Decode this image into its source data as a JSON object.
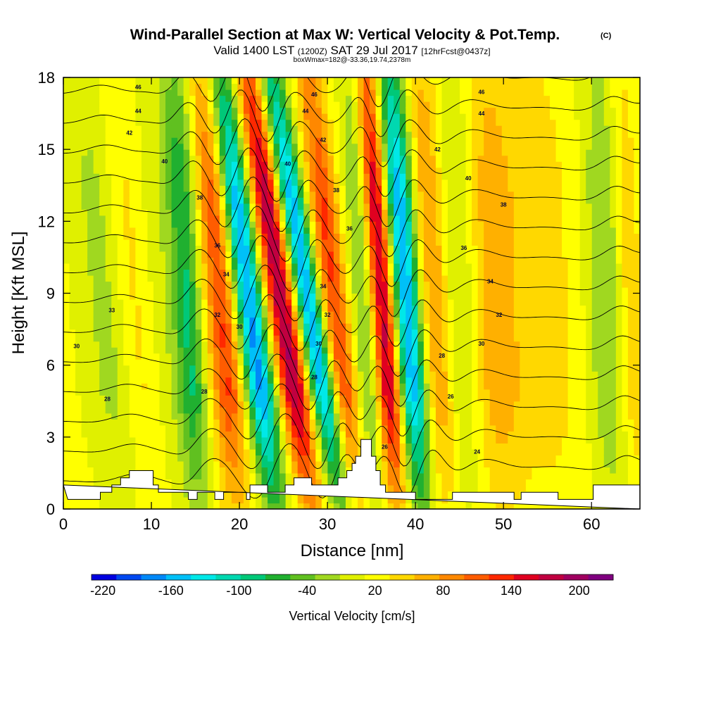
{
  "chart_data": {
    "type": "heatmap",
    "title": "Wind-Parallel Section at Max W: Vertical Velocity & Pot.Temp.",
    "title_mark": "(C)",
    "subtitle_parts": [
      "Valid 1400 LST",
      "(1200Z)",
      "SAT 29 Jul 2017",
      "[12hrFcst@0437z]"
    ],
    "subtitle2": "boxWmax=182@-33.36,19.74,2378m",
    "xlabel": "Distance [nm]",
    "ylabel": "Height [Kft MSL]",
    "xlim": [
      0,
      65.5
    ],
    "ylim": [
      0,
      18
    ],
    "xticks": [
      0,
      10,
      20,
      30,
      40,
      50,
      60
    ],
    "yticks": [
      0,
      3,
      6,
      9,
      12,
      15,
      18
    ],
    "colorbar": {
      "label": "Vertical Velocity [cm/s]",
      "ticks": [
        -220,
        -160,
        -100,
        -40,
        20,
        80,
        140,
        200
      ],
      "min": -230,
      "max": 230,
      "colors": [
        "#0000e0",
        "#0048f0",
        "#0088f8",
        "#00c0f8",
        "#00e8e8",
        "#00d8b0",
        "#00c878",
        "#20b030",
        "#60c020",
        "#a0d820",
        "#e0f000",
        "#ffff00",
        "#ffd800",
        "#ffb000",
        "#ff8800",
        "#ff5c00",
        "#ff2800",
        "#e00020",
        "#c00040",
        "#a00060",
        "#800080"
      ]
    },
    "wave_bands": [
      {
        "x": 5.5,
        "w": -35,
        "tilt": 0.25,
        "width": 2.8
      },
      {
        "x": 8.5,
        "w": 30,
        "tilt": 0.25,
        "width": 2.2
      },
      {
        "x": 12.0,
        "w": -20,
        "tilt": 0.2,
        "width": 2.2
      },
      {
        "x": 14.5,
        "w": -90,
        "tilt": 0.15,
        "width": 1.6
      },
      {
        "x": 18.5,
        "w": 110,
        "tilt": 0.2,
        "width": 1.9
      },
      {
        "x": 22.0,
        "w": -190,
        "tilt": 0.35,
        "width": 1.7
      },
      {
        "x": 25.8,
        "w": 175,
        "tilt": 0.4,
        "width": 1.7
      },
      {
        "x": 29.0,
        "w": -180,
        "tilt": 0.45,
        "width": 1.5
      },
      {
        "x": 31.5,
        "w": 110,
        "tilt": 0.3,
        "width": 1.6
      },
      {
        "x": 34.5,
        "w": -60,
        "tilt": 0.15,
        "width": 1.4
      },
      {
        "x": 36.8,
        "w": 165,
        "tilt": 0.2,
        "width": 1.4
      },
      {
        "x": 39.5,
        "w": -180,
        "tilt": 0.2,
        "width": 1.6
      },
      {
        "x": 42.5,
        "w": 70,
        "tilt": 0.15,
        "width": 1.8
      },
      {
        "x": 45.5,
        "w": -40,
        "tilt": 0.1,
        "width": 2.5
      },
      {
        "x": 49.0,
        "w": 60,
        "tilt": 0.1,
        "width": 3.0
      },
      {
        "x": 55.0,
        "w": 30,
        "tilt": 0.1,
        "width": 3.5
      },
      {
        "x": 62.0,
        "w": -50,
        "tilt": 0.1,
        "width": 2.2
      },
      {
        "x": 64.5,
        "w": 40,
        "tilt": 0.1,
        "width": 1.5
      }
    ],
    "terrain": [
      [
        0,
        1
      ],
      [
        0.5,
        0.4
      ],
      [
        4.2,
        0.4
      ],
      [
        4.2,
        0.7
      ],
      [
        5.5,
        0.7
      ],
      [
        5.5,
        1.0
      ],
      [
        6.5,
        1.0
      ],
      [
        6.5,
        1.3
      ],
      [
        7.5,
        1.3
      ],
      [
        7.5,
        1.6
      ],
      [
        10.2,
        1.6
      ],
      [
        10.2,
        1.0
      ],
      [
        10.8,
        1.0
      ],
      [
        10.8,
        0.7
      ],
      [
        14.2,
        0.7
      ],
      [
        14.2,
        0.4
      ],
      [
        15.2,
        0.4
      ],
      [
        15.2,
        0.7
      ],
      [
        17.2,
        0.7
      ],
      [
        17.2,
        0.4
      ],
      [
        18.2,
        0.4
      ],
      [
        18.2,
        0.7
      ],
      [
        20.8,
        0.7
      ],
      [
        20.8,
        0.4
      ],
      [
        21.2,
        0.4
      ],
      [
        21.2,
        1.0
      ],
      [
        23.2,
        1.0
      ],
      [
        23.2,
        0.7
      ],
      [
        25.2,
        0.7
      ],
      [
        25.2,
        1.0
      ],
      [
        26.2,
        1.0
      ],
      [
        26.2,
        1.3
      ],
      [
        28.2,
        1.3
      ],
      [
        28.2,
        1.0
      ],
      [
        31.2,
        1.0
      ],
      [
        31.2,
        1.3
      ],
      [
        32.2,
        1.3
      ],
      [
        32.2,
        1.6
      ],
      [
        32.8,
        1.6
      ],
      [
        32.8,
        1.9
      ],
      [
        33.2,
        1.9
      ],
      [
        33.2,
        2.2
      ],
      [
        33.8,
        2.2
      ],
      [
        33.8,
        2.9
      ],
      [
        35.0,
        2.9
      ],
      [
        35.0,
        2.2
      ],
      [
        35.5,
        2.2
      ],
      [
        35.5,
        1.6
      ],
      [
        36.0,
        1.6
      ],
      [
        36.0,
        1.0
      ],
      [
        36.6,
        1.0
      ],
      [
        36.6,
        0.7
      ],
      [
        40.0,
        0.7
      ],
      [
        40.0,
        0.4
      ],
      [
        44.2,
        0.4
      ],
      [
        44.2,
        0.7
      ],
      [
        51.2,
        0.7
      ],
      [
        51.2,
        0.4
      ],
      [
        52.0,
        0.4
      ],
      [
        52.0,
        0.7
      ],
      [
        56.2,
        0.7
      ],
      [
        56.2,
        0.4
      ],
      [
        60.2,
        0.4
      ],
      [
        60.2,
        1.0
      ],
      [
        65.5,
        1.0
      ],
      [
        65.5,
        0
      ]
    ],
    "isentropes": {
      "start": 22,
      "step": 2,
      "count": 14,
      "labels": [
        {
          "text": "46",
          "x": 8.5,
          "y": 17.6
        },
        {
          "text": "44",
          "x": 8.5,
          "y": 16.6
        },
        {
          "text": "42",
          "x": 7.5,
          "y": 15.7
        },
        {
          "text": "40",
          "x": 11.5,
          "y": 14.5
        },
        {
          "text": "38",
          "x": 15.5,
          "y": 13.0
        },
        {
          "text": "36",
          "x": 17.5,
          "y": 11.0
        },
        {
          "text": "34",
          "x": 18.5,
          "y": 9.8
        },
        {
          "text": "32",
          "x": 17.5,
          "y": 8.1
        },
        {
          "text": "30",
          "x": 20.0,
          "y": 7.6
        },
        {
          "text": "28",
          "x": 16.0,
          "y": 4.9
        },
        {
          "text": "33",
          "x": 5.5,
          "y": 8.3
        },
        {
          "text": "30",
          "x": 1.5,
          "y": 6.8
        },
        {
          "text": "28",
          "x": 5.0,
          "y": 4.6
        },
        {
          "text": "46",
          "x": 28.5,
          "y": 17.3
        },
        {
          "text": "44",
          "x": 27.5,
          "y": 16.6
        },
        {
          "text": "42",
          "x": 29.5,
          "y": 15.4
        },
        {
          "text": "40",
          "x": 25.5,
          "y": 14.4
        },
        {
          "text": "38",
          "x": 31.0,
          "y": 13.3
        },
        {
          "text": "36",
          "x": 32.5,
          "y": 11.7
        },
        {
          "text": "34",
          "x": 29.5,
          "y": 9.3
        },
        {
          "text": "32",
          "x": 30.0,
          "y": 8.1
        },
        {
          "text": "30",
          "x": 29.0,
          "y": 6.9
        },
        {
          "text": "28",
          "x": 28.5,
          "y": 5.5
        },
        {
          "text": "26",
          "x": 36.5,
          "y": 2.6
        },
        {
          "text": "46",
          "x": 47.5,
          "y": 17.4
        },
        {
          "text": "44",
          "x": 47.5,
          "y": 16.5
        },
        {
          "text": "42",
          "x": 42.5,
          "y": 15.0
        },
        {
          "text": "40",
          "x": 46.0,
          "y": 13.8
        },
        {
          "text": "38",
          "x": 50.0,
          "y": 12.7
        },
        {
          "text": "36",
          "x": 45.5,
          "y": 10.9
        },
        {
          "text": "34",
          "x": 48.5,
          "y": 9.5
        },
        {
          "text": "32",
          "x": 49.5,
          "y": 8.1
        },
        {
          "text": "30",
          "x": 47.5,
          "y": 6.9
        },
        {
          "text": "28",
          "x": 43.0,
          "y": 6.4
        },
        {
          "text": "26",
          "x": 44.0,
          "y": 4.7
        },
        {
          "text": "24",
          "x": 47.0,
          "y": 2.4
        }
      ]
    }
  }
}
